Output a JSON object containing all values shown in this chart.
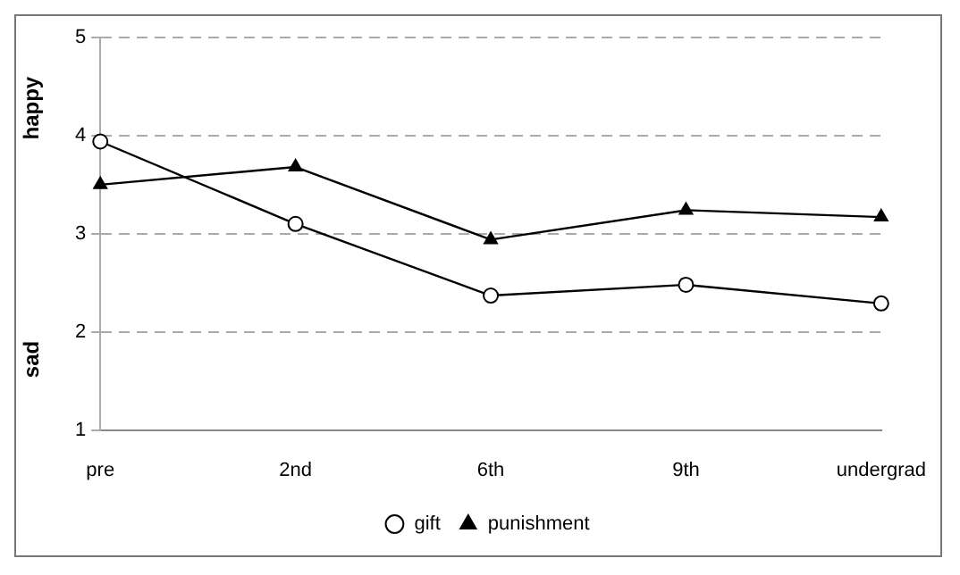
{
  "chart_data": {
    "type": "line",
    "categories": [
      "pre",
      "2nd",
      "6th",
      "9th",
      "undergrad"
    ],
    "series": [
      {
        "name": "gift",
        "color": "#000000",
        "marker": "circle",
        "values": [
          3.94,
          3.1,
          2.37,
          2.48,
          2.29
        ]
      },
      {
        "name": "punishment",
        "color": "#000000",
        "marker": "triangle",
        "values": [
          3.5,
          3.68,
          2.94,
          3.24,
          3.17
        ]
      }
    ],
    "ylim": [
      1,
      5
    ],
    "yticks": [
      1,
      2,
      3,
      4,
      5
    ],
    "grid": "y",
    "legend": "bottom",
    "annotations": [
      "happy",
      "sad"
    ]
  }
}
